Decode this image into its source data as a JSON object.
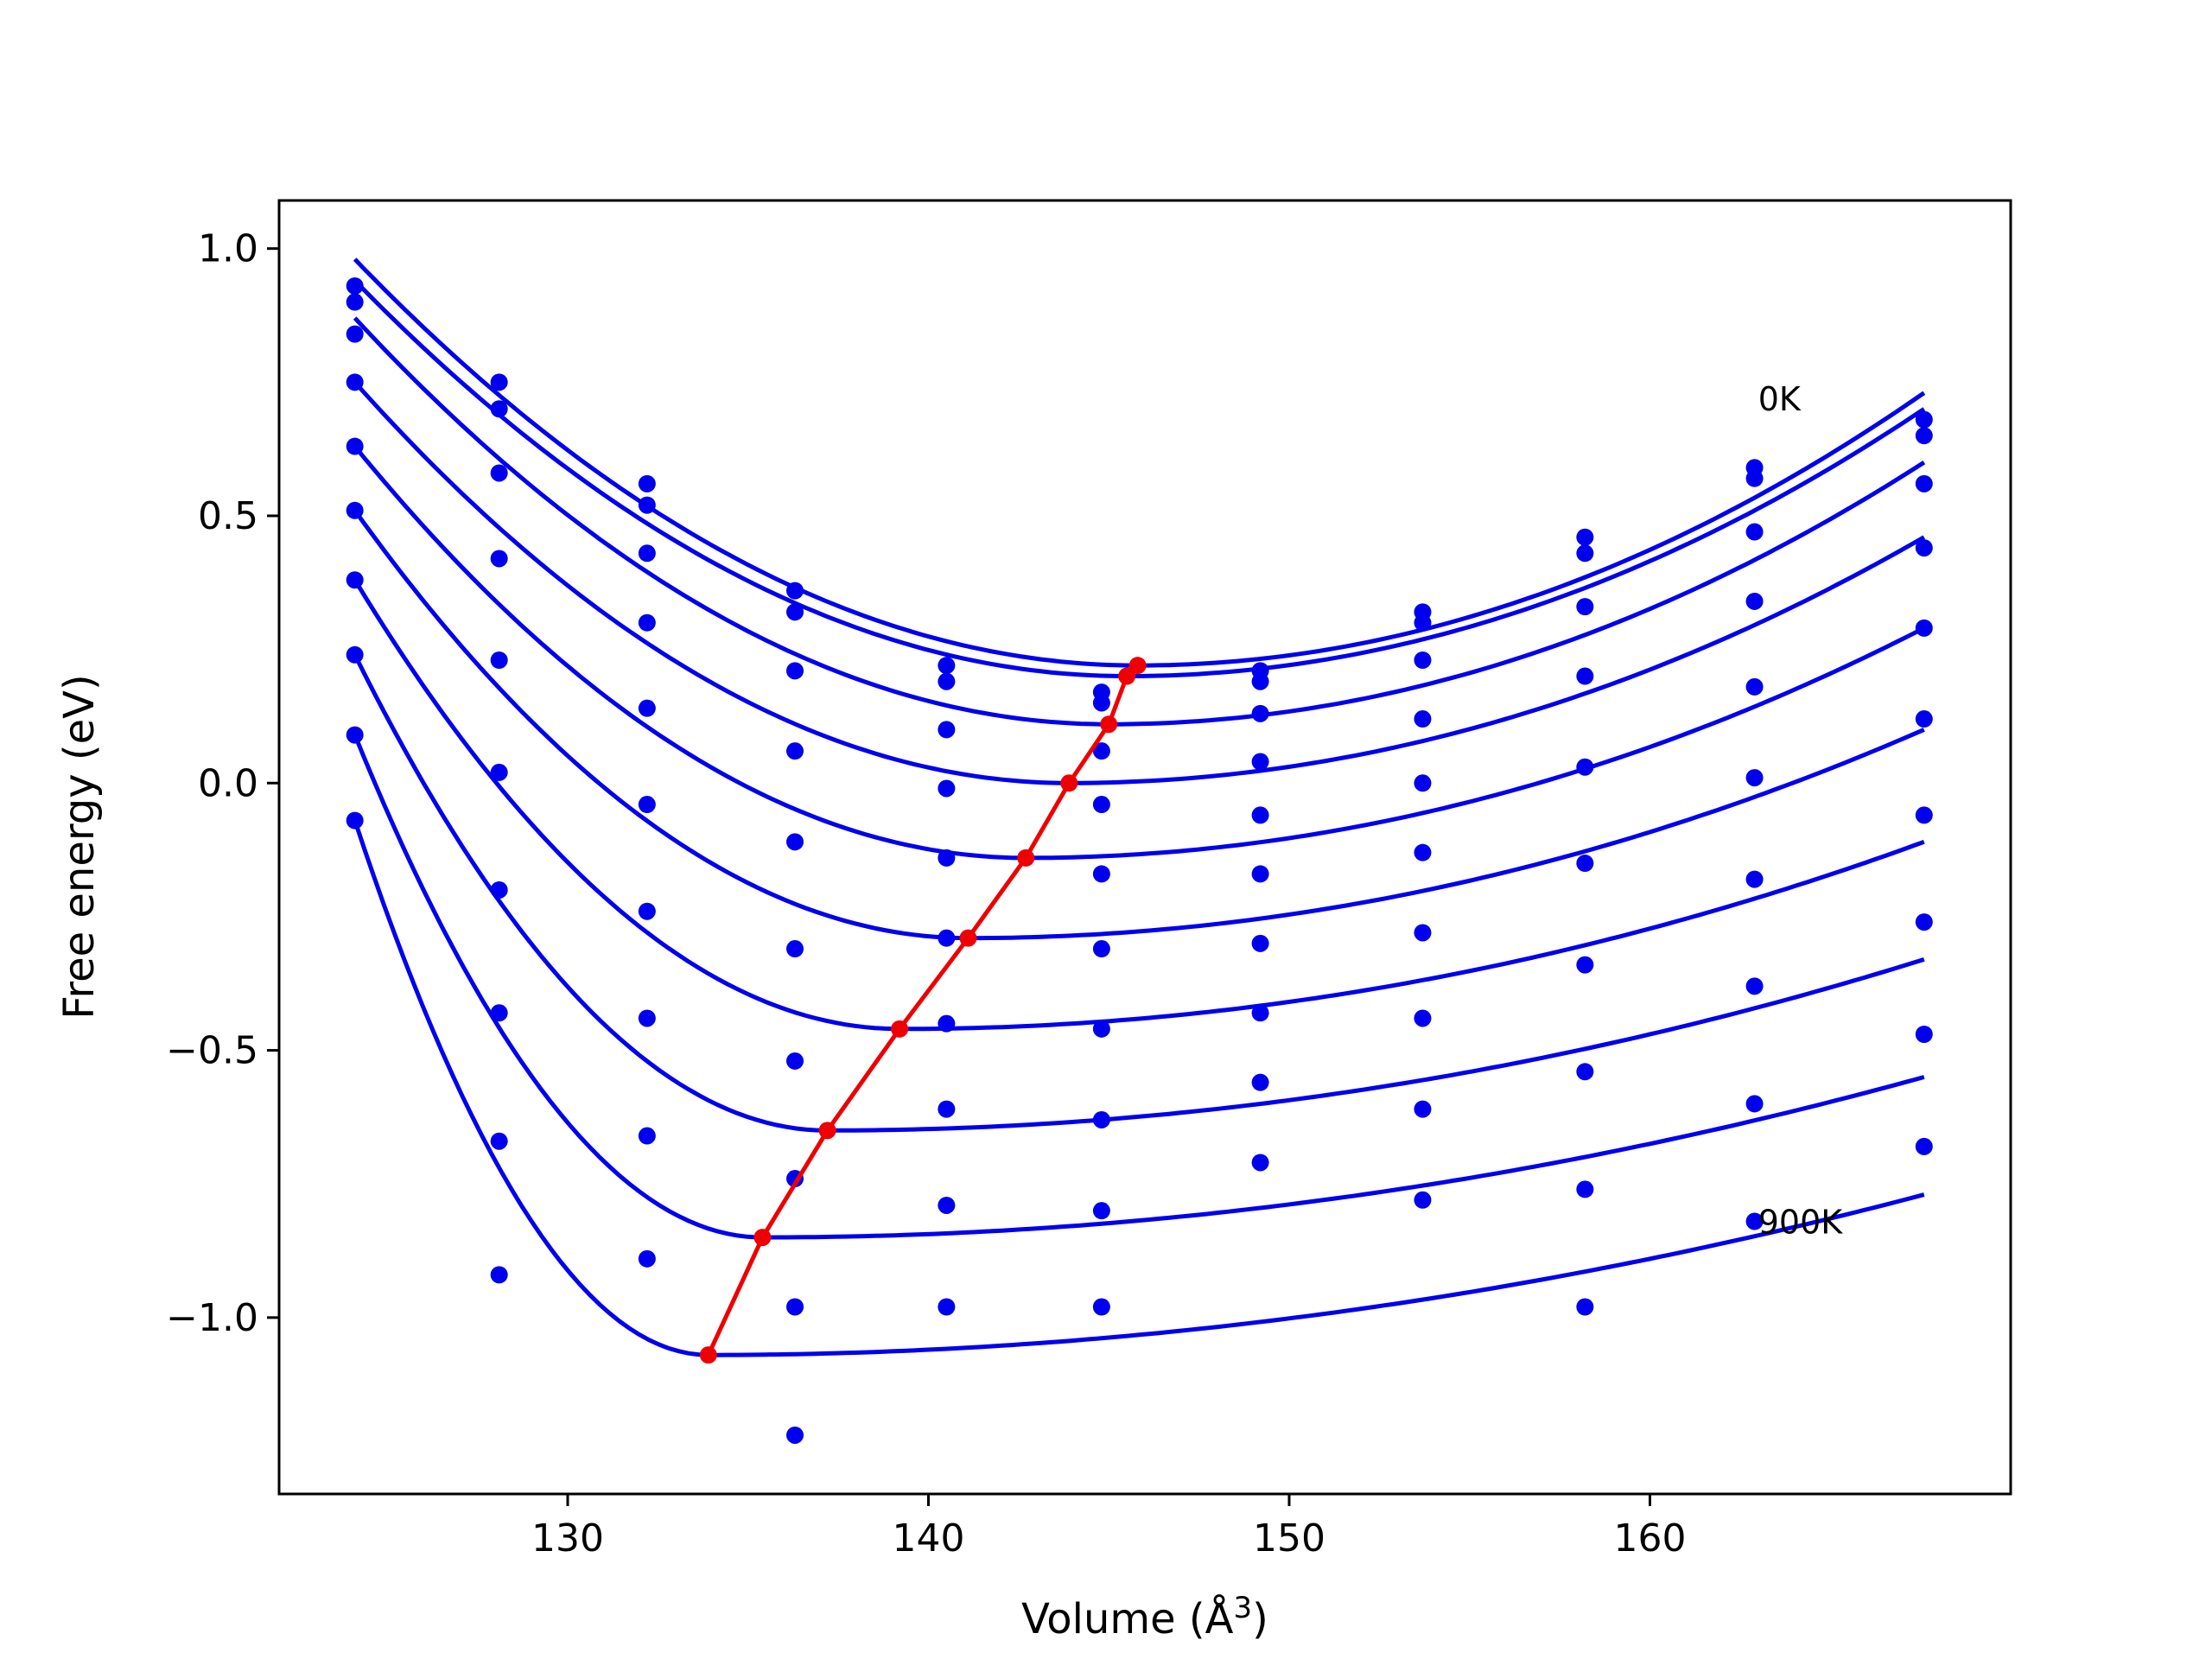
{
  "chart_data": {
    "type": "line",
    "xlabel": "Volume (Å",
    "xlabel_superscript": "3",
    "xlabel_close": ")",
    "ylabel": "Free energy (eV)",
    "xlim": [
      122,
      170
    ],
    "ylim": [
      -1.33,
      1.09
    ],
    "xticks": [
      130,
      140,
      150,
      160
    ],
    "yticks": [
      1.0,
      0.5,
      0.0,
      -0.5,
      -1.0
    ],
    "ytick_labels": [
      "1.0",
      "0.5",
      "0.0",
      "−0.5",
      "−1.0"
    ],
    "grid": false,
    "annotations": [
      {
        "text": "0K",
        "x": 163.0,
        "y": 0.72
      },
      {
        "text": "900K",
        "x": 163.0,
        "y": -0.82
      }
    ],
    "colors": {
      "curves": "#0000ee",
      "points": "#0000ee",
      "minimum_line": "#ee0000"
    },
    "x": [
      124.1,
      128.1,
      132.2,
      136.3,
      140.5,
      144.8,
      149.2,
      153.7,
      158.2,
      162.9,
      167.6
    ],
    "series": [
      {
        "values": [
          0.93,
          0.75,
          0.56,
          0.36,
          0.22,
          0.17,
          0.21,
          0.32,
          0.46,
          0.59,
          0.68
        ],
        "fit_min": [
          145.8,
          0.22
        ],
        "fit_ends": [
          0.98,
          0.73
        ]
      },
      {
        "values": [
          0.9,
          0.7,
          0.52,
          0.32,
          0.19,
          0.15,
          0.19,
          0.3,
          0.43,
          0.57,
          0.65
        ],
        "fit_min": [
          145.5,
          0.2
        ],
        "fit_ends": [
          0.94,
          0.7
        ]
      },
      {
        "values": [
          0.84,
          0.58,
          0.43,
          0.21,
          0.1,
          0.06,
          0.13,
          0.23,
          0.33,
          0.47,
          0.56
        ],
        "fit_min": [
          145.0,
          0.11
        ],
        "fit_ends": [
          0.87,
          0.6
        ]
      },
      {
        "values": [
          0.75,
          0.42,
          0.3,
          0.06,
          -0.01,
          -0.04,
          0.04,
          0.12,
          0.2,
          0.34,
          0.44
        ],
        "fit_min": [
          143.9,
          0.0
        ],
        "fit_ends": [
          0.75,
          0.46
        ]
      },
      {
        "values": [
          0.63,
          0.23,
          0.14,
          -0.11,
          -0.14,
          -0.17,
          -0.06,
          0.0,
          0.03,
          0.18,
          0.29
        ],
        "fit_min": [
          142.7,
          -0.14
        ],
        "fit_ends": [
          0.63,
          0.29
        ]
      },
      {
        "values": [
          0.51,
          0.02,
          -0.04,
          -0.31,
          -0.29,
          -0.31,
          -0.17,
          -0.13,
          -0.15,
          0.01,
          0.12
        ],
        "fit_min": [
          141.1,
          -0.29
        ],
        "fit_ends": [
          0.51,
          0.1
        ]
      },
      {
        "values": [
          0.38,
          -0.2,
          -0.24,
          -0.52,
          -0.45,
          -0.46,
          -0.3,
          -0.28,
          -0.34,
          -0.18,
          -0.06
        ],
        "fit_min": [
          139.2,
          -0.46
        ],
        "fit_ends": [
          0.38,
          -0.11
        ]
      },
      {
        "values": [
          0.24,
          -0.43,
          -0.44,
          -0.74,
          -0.61,
          -0.63,
          -0.43,
          -0.44,
          -0.54,
          -0.38,
          -0.26
        ],
        "fit_min": [
          137.2,
          -0.65
        ],
        "fit_ends": [
          0.24,
          -0.33
        ]
      },
      {
        "values": [
          0.09,
          -0.67,
          -0.66,
          -0.98,
          -0.79,
          -0.8,
          -0.56,
          -0.61,
          -0.76,
          -0.6,
          -0.47
        ],
        "fit_min": [
          135.4,
          -0.85
        ],
        "fit_ends": [
          0.09,
          -0.55
        ]
      },
      {
        "values": [
          -0.07,
          -0.92,
          -0.89,
          -1.22,
          -0.98,
          -0.98,
          -0.71,
          -0.78,
          -0.98,
          -0.82,
          -0.68
        ],
        "fit_min": [
          133.9,
          -1.07
        ],
        "fit_ends": [
          -0.07,
          -0.77
        ]
      }
    ],
    "minimum_line": {
      "x": [
        133.9,
        135.4,
        137.2,
        139.2,
        141.1,
        142.7,
        143.9,
        145.0,
        145.5,
        145.8
      ],
      "y": [
        -1.07,
        -0.85,
        -0.65,
        -0.46,
        -0.29,
        -0.14,
        0.0,
        0.11,
        0.2,
        0.22
      ]
    }
  }
}
